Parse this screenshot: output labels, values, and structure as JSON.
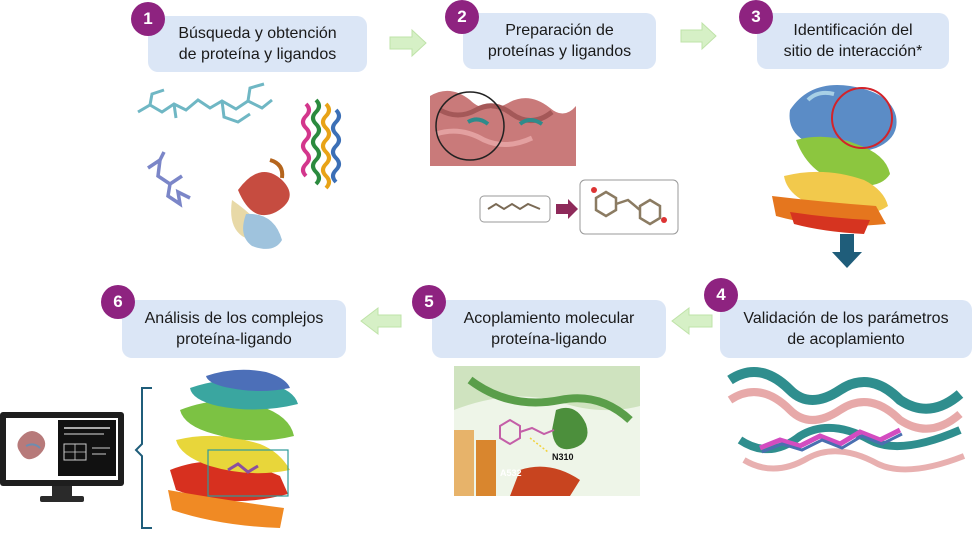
{
  "steps": [
    {
      "number": "1",
      "line1": "Búsqueda y obtención",
      "line2": "de proteína y ligandos"
    },
    {
      "number": "2",
      "line1": "Preparación de",
      "line2": "proteínas y ligandos"
    },
    {
      "number": "3",
      "line1": "Identificación del",
      "line2": "sitio de interacción*"
    },
    {
      "number": "4",
      "line1": "Validación de los parámetros",
      "line2": "de acoplamiento"
    },
    {
      "number": "5",
      "line1": "Acoplamiento molecular",
      "line2": "proteína-ligando"
    },
    {
      "number": "6",
      "line1": "Análisis de los complejos",
      "line2": "proteína-ligando"
    }
  ],
  "residue_labels": {
    "a532": "A532",
    "n310": "N310"
  },
  "colors": {
    "badge": "#8e2380",
    "bubble": "#dbe6f6",
    "arrow": "#d6f0c6",
    "down_arrow": "#1f5d7a",
    "ligand_arrow": "#8e2a5a"
  }
}
